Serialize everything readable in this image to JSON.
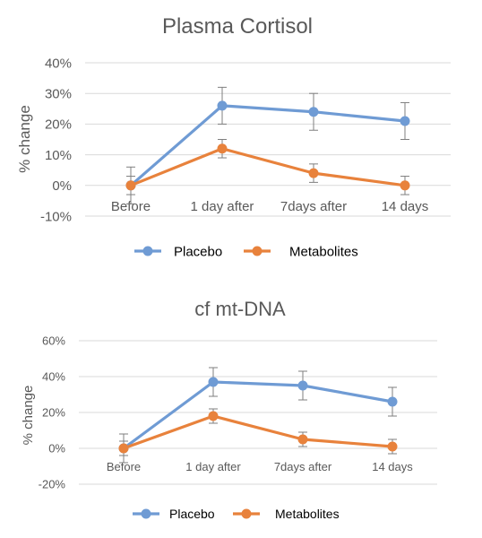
{
  "chart_data": [
    {
      "type": "line",
      "title": "Plasma Cortisol",
      "ylabel": "% change",
      "xlabel": "",
      "categories": [
        "Before",
        "1 day after",
        "7days after",
        "14 days"
      ],
      "ylim": [
        -10,
        40
      ],
      "yticks": [
        -10,
        0,
        10,
        20,
        30,
        40
      ],
      "ytick_labels": [
        "-10%",
        "0%",
        "10%",
        "20%",
        "30%",
        "40%"
      ],
      "grid": true,
      "legend_position": "bottom",
      "series": [
        {
          "name": "Placebo",
          "color": "#6f9bd4",
          "values": [
            0,
            26,
            24,
            21
          ],
          "errors": [
            6,
            6,
            6,
            6
          ]
        },
        {
          "name": "Metabolites",
          "color": "#e8823c",
          "values": [
            0,
            12,
            4,
            0
          ],
          "errors": [
            3,
            3,
            3,
            3
          ]
        }
      ]
    },
    {
      "type": "line",
      "title": "cf mt-DNA",
      "ylabel": "% change",
      "xlabel": "",
      "categories": [
        "Before",
        "1 day after",
        "7days after",
        "14 days"
      ],
      "ylim": [
        -20,
        60
      ],
      "yticks": [
        -20,
        0,
        20,
        40,
        60
      ],
      "ytick_labels": [
        "-20%",
        "0%",
        "20%",
        "40%",
        "60%"
      ],
      "grid": true,
      "legend_position": "bottom",
      "series": [
        {
          "name": "Placebo",
          "color": "#6f9bd4",
          "values": [
            0,
            37,
            35,
            26
          ],
          "errors": [
            8,
            8,
            8,
            8
          ]
        },
        {
          "name": "Metabolites",
          "color": "#e8823c",
          "values": [
            0,
            18,
            5,
            1
          ],
          "errors": [
            4,
            4,
            4,
            4
          ]
        }
      ]
    }
  ]
}
